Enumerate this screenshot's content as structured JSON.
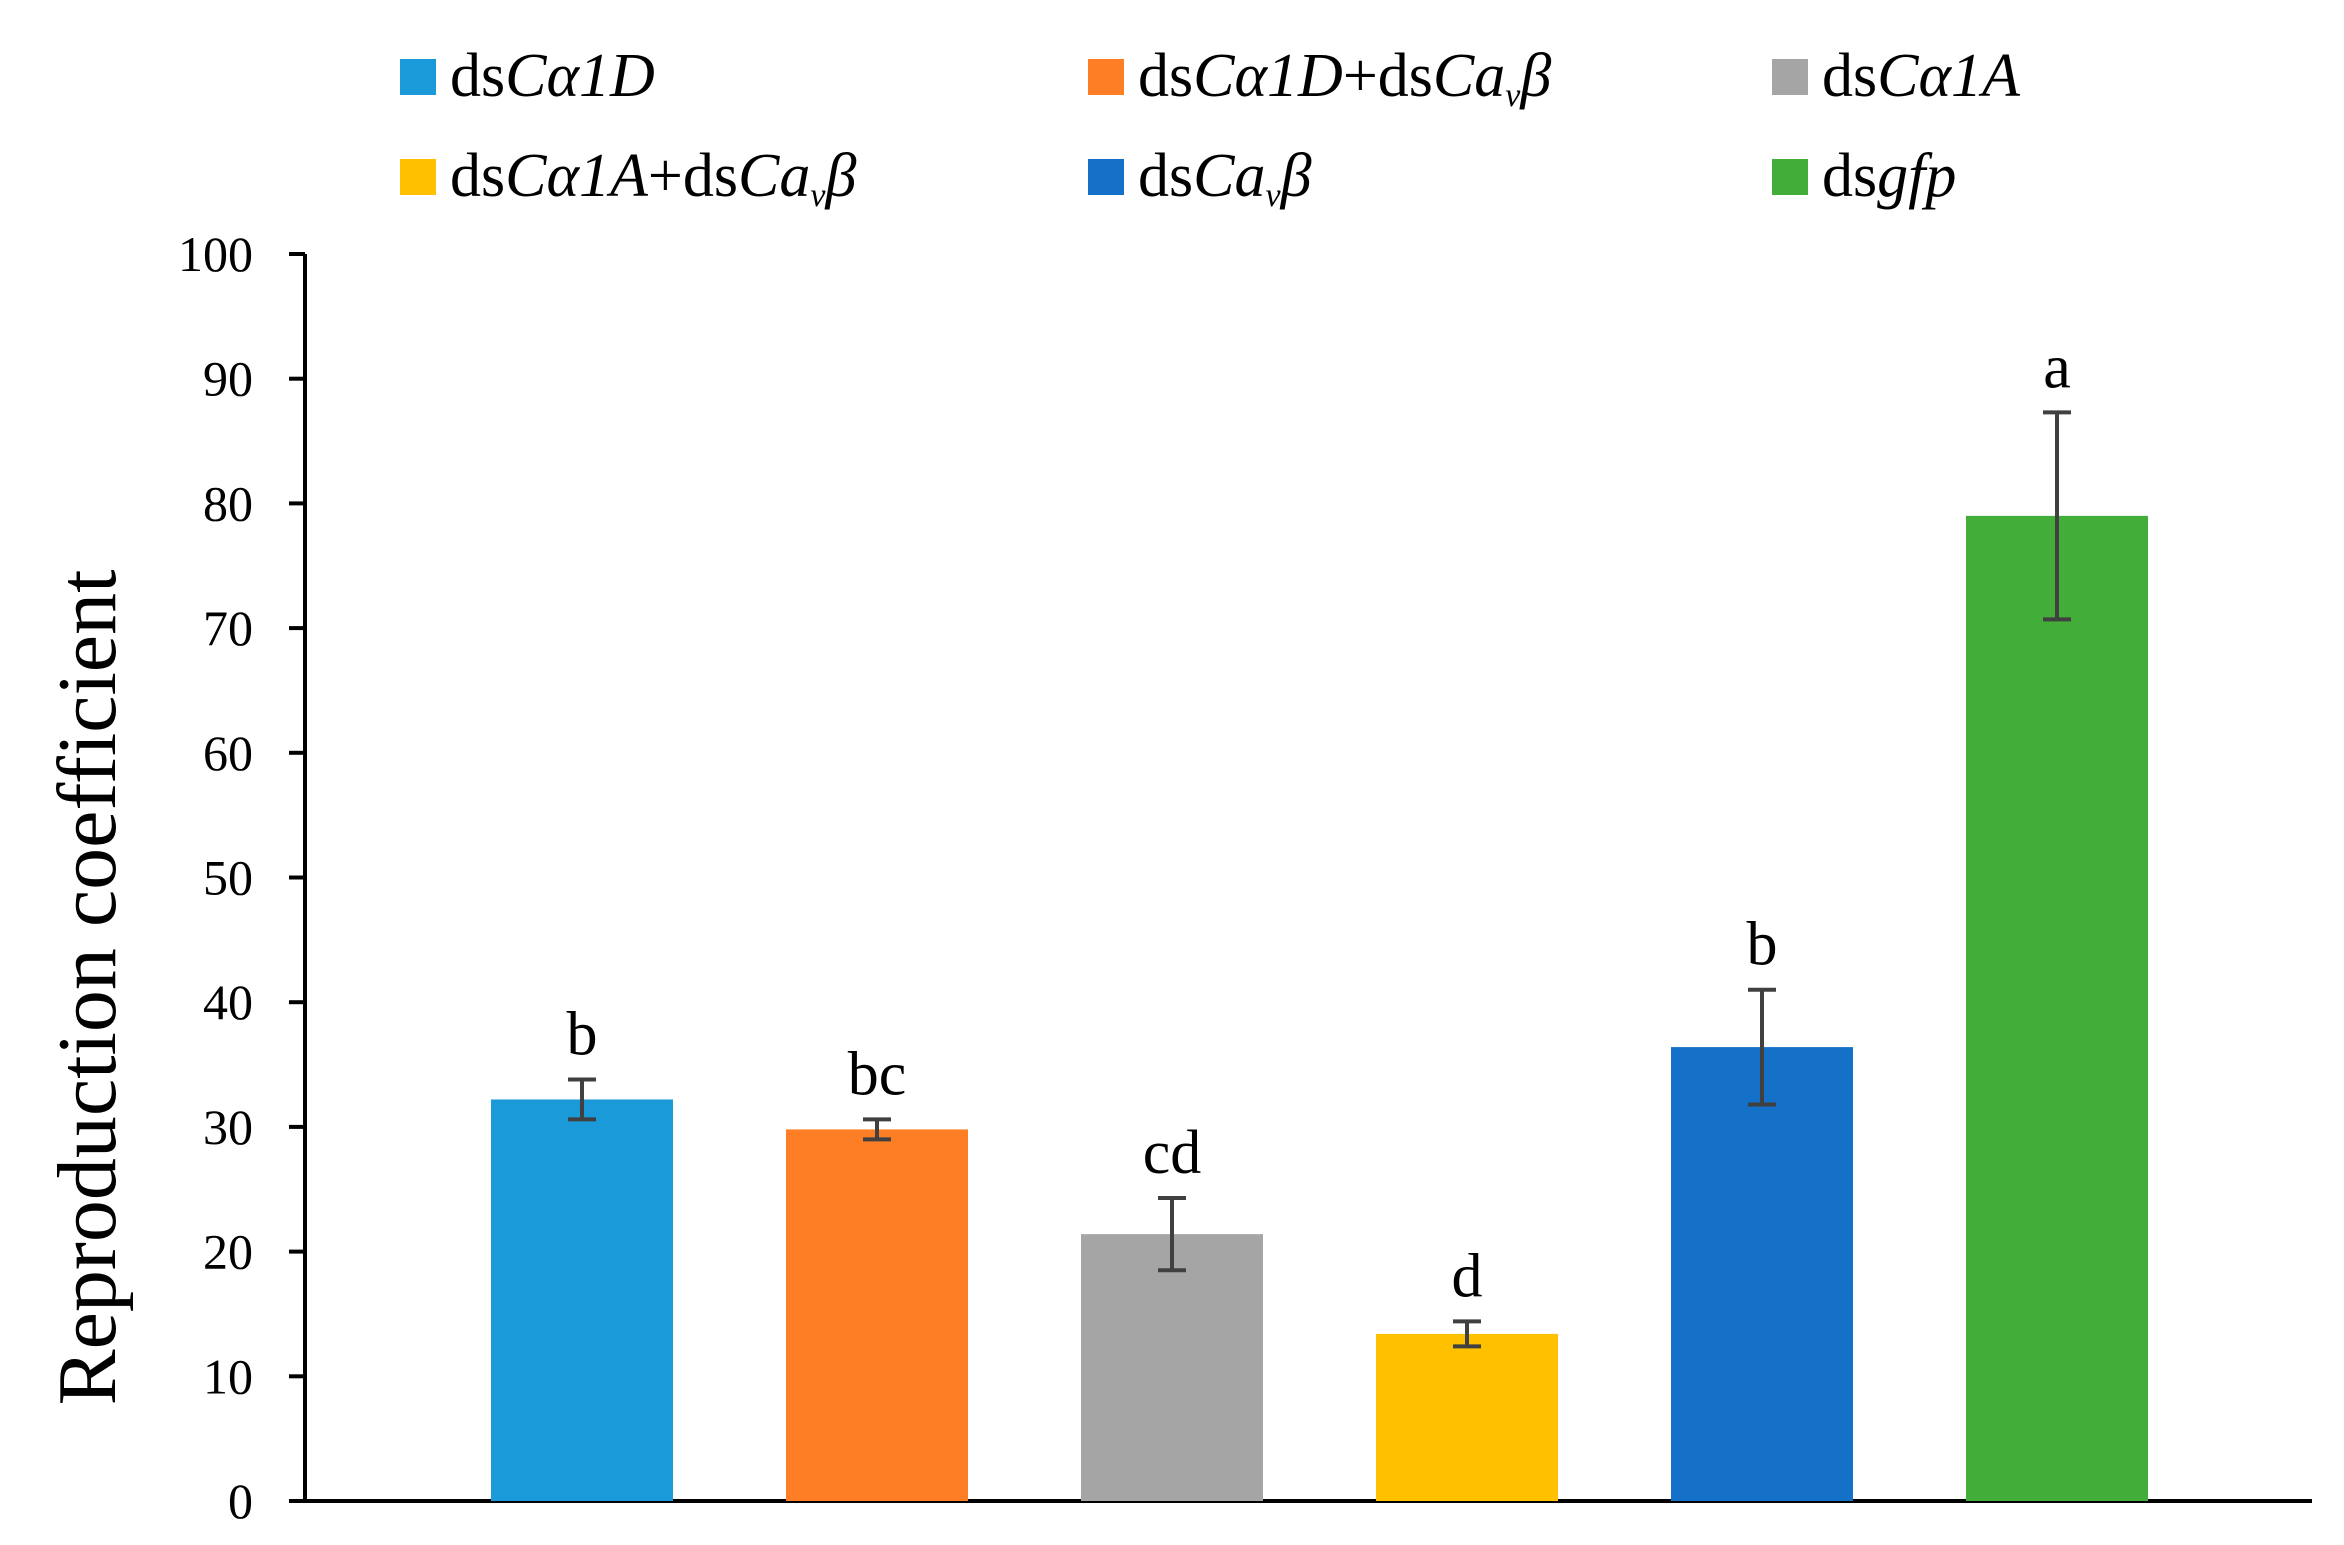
{
  "chart_data": {
    "type": "bar",
    "title": "",
    "xlabel": "",
    "ylabel": "Reproduction coefficient",
    "ylim": [
      0,
      100
    ],
    "yticks": [
      0,
      10,
      20,
      30,
      40,
      50,
      60,
      70,
      80,
      90,
      100
    ],
    "grid": false,
    "legend_position": "top",
    "categories": [
      "dsCα1D",
      "dsCα1D+dsCavβ",
      "dsCα1A",
      "dsCα1A+dsCavβ",
      "dsCavβ",
      "dsgfp"
    ],
    "values": [
      32.2,
      29.8,
      21.4,
      13.4,
      36.4,
      79.0
    ],
    "errors": [
      1.6,
      0.8,
      2.9,
      1.0,
      4.6,
      8.3
    ],
    "significance": [
      "b",
      "bc",
      "cd",
      "d",
      "b",
      "a"
    ],
    "colors": [
      "#1a9ad8",
      "#fd7e24",
      "#a5a5a5",
      "#ffc000",
      "#1570c8",
      "#43ad39"
    ],
    "error_bar_color": "#404040"
  },
  "legend": [
    {
      "prefix": "ds",
      "parts": [
        {
          "t": "Cα1D",
          "i": true
        }
      ]
    },
    {
      "prefix": "ds",
      "parts": [
        {
          "t": "Cα1D",
          "i": true
        },
        {
          "t": "+ds",
          "i": false
        },
        {
          "t": "Ca",
          "i": true
        },
        {
          "t": "v",
          "i": true,
          "sub": true
        },
        {
          "t": "β",
          "i": true
        }
      ]
    },
    {
      "prefix": "ds",
      "parts": [
        {
          "t": "Cα1A",
          "i": true
        }
      ]
    },
    {
      "prefix": "ds",
      "parts": [
        {
          "t": "Cα1A",
          "i": true
        },
        {
          "t": "+ds",
          "i": false
        },
        {
          "t": "Ca",
          "i": true
        },
        {
          "t": "v",
          "i": true,
          "sub": true
        },
        {
          "t": "β",
          "i": true
        }
      ]
    },
    {
      "prefix": "ds",
      "parts": [
        {
          "t": "Ca",
          "i": true
        },
        {
          "t": "v",
          "i": true,
          "sub": true
        },
        {
          "t": "β",
          "i": true
        }
      ]
    },
    {
      "prefix": "ds",
      "parts": [
        {
          "t": "gfp",
          "i": true
        }
      ]
    }
  ]
}
